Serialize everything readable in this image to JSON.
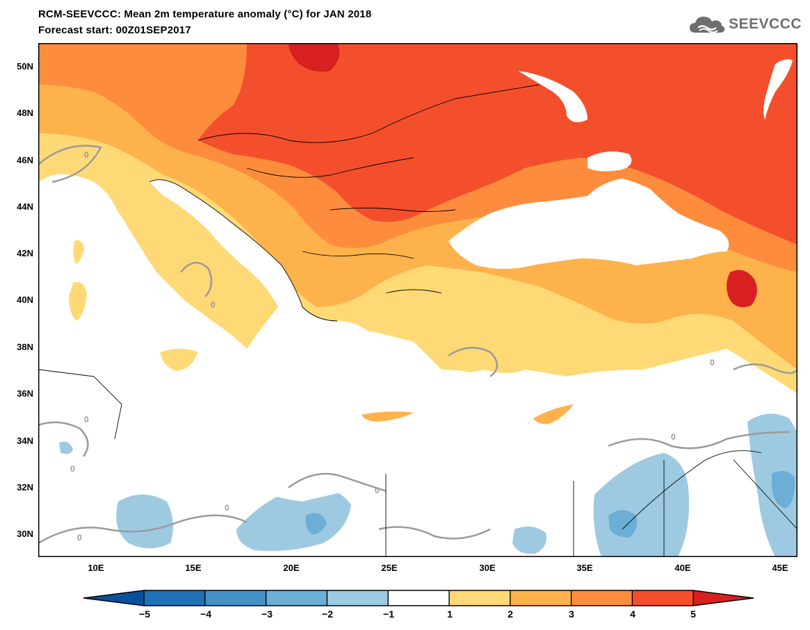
{
  "header": {
    "title": "RCM-SEEVCCC: Mean 2m temperature anomaly (°C) for JAN 2018",
    "subtitle": "Forecast start: 00Z01SEP2017"
  },
  "logo": {
    "text": "SEEVCCC",
    "icon": "cloud-icon"
  },
  "map": {
    "lat_labels": [
      "50N",
      "48N",
      "46N",
      "44N",
      "42N",
      "40N",
      "38N",
      "36N",
      "34N",
      "32N",
      "30N"
    ],
    "lon_labels": [
      "10E",
      "15E",
      "20E",
      "25E",
      "30E",
      "35E",
      "40E",
      "45E"
    ],
    "contour_label": "0",
    "colors": {
      "land_white": "#ffffff",
      "pos1": "#fed976",
      "pos2": "#feb24c",
      "pos3": "#fd8d3c",
      "pos4": "#f44f2c",
      "pos5": "#d92020",
      "neg1": "#9ecae1",
      "neg2": "#6baed6",
      "neg3": "#4292c6",
      "neg4": "#2171b5",
      "neg5": "#08519c",
      "contour": "#9a9a9a"
    }
  },
  "colorbar": {
    "labels": [
      "−5",
      "−4",
      "−3",
      "−2",
      "−1",
      "1",
      "2",
      "3",
      "4",
      "5"
    ],
    "colors": [
      "#08519c",
      "#2171b5",
      "#4292c6",
      "#6baed6",
      "#9ecae1",
      "#ffffff",
      "#fed976",
      "#feb24c",
      "#fd8d3c",
      "#f44f2c",
      "#d92020"
    ]
  }
}
